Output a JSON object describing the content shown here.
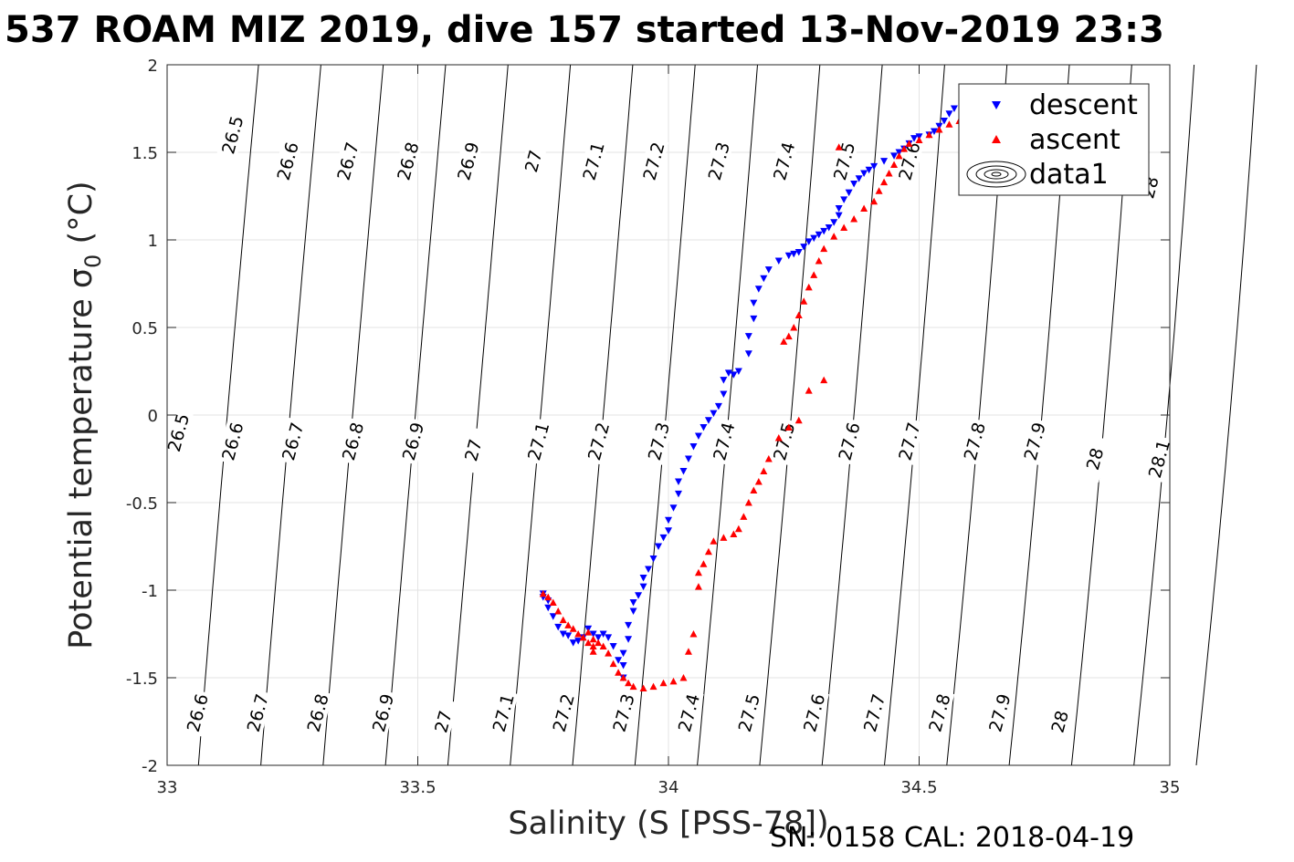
{
  "chart_data": {
    "type": "scatter",
    "title": "537 ROAM MIZ 2019, dive 157 started 13-Nov-2019 23:3",
    "xlabel": "Salinity (S [PSS-78])",
    "ylabel_main": "Potential temperature ",
    "ylabel_sigma": "σ",
    "ylabel_sub": "0",
    "ylabel_unit": " (°C)",
    "footer": "SN: 0158  CAL: 2018-04-19",
    "xlim": [
      33,
      35
    ],
    "ylim": [
      -2,
      2
    ],
    "xticks": [
      33,
      33.5,
      34,
      34.5,
      35
    ],
    "xtick_labels": [
      "33",
      "33.5",
      "34",
      "34.5",
      "35"
    ],
    "yticks": [
      -2,
      -1.5,
      -1,
      -0.5,
      0,
      0.5,
      1,
      1.5,
      2
    ],
    "ytick_labels": [
      "-2",
      "-1.5",
      "-1",
      "-0.5",
      "0",
      "0.5",
      "1",
      "1.5",
      "2"
    ],
    "grid": true,
    "legend_position": "top-right",
    "legend": [
      {
        "label": "descent",
        "marker": "triangle-down",
        "color": "#0000ff"
      },
      {
        "label": "ascent",
        "marker": "triangle-up",
        "color": "#ff0000"
      },
      {
        "label": "data1",
        "marker": "contour",
        "color": "#000000"
      }
    ],
    "density_contours": {
      "levels": [
        26.5,
        26.6,
        26.7,
        26.8,
        26.9,
        27,
        27.1,
        27.2,
        27.3,
        27.4,
        27.5,
        27.6,
        27.7,
        27.8,
        27.9,
        28,
        28.1
      ],
      "labels_upper": [
        {
          "text": "26.5",
          "s": 33.13,
          "t": 1.6
        },
        {
          "text": "26.6",
          "s": 33.24,
          "t": 1.45
        },
        {
          "text": "26.7",
          "s": 33.36,
          "t": 1.45
        },
        {
          "text": "26.8",
          "s": 33.48,
          "t": 1.45
        },
        {
          "text": "26.9",
          "s": 33.6,
          "t": 1.45
        },
        {
          "text": "27",
          "s": 33.73,
          "t": 1.45
        },
        {
          "text": "27.1",
          "s": 33.85,
          "t": 1.45
        },
        {
          "text": "27.2",
          "s": 33.97,
          "t": 1.45
        },
        {
          "text": "27.3",
          "s": 34.1,
          "t": 1.45
        },
        {
          "text": "27.4",
          "s": 34.23,
          "t": 1.45
        },
        {
          "text": "27.5",
          "s": 34.35,
          "t": 1.45
        },
        {
          "text": "27.6",
          "s": 34.48,
          "t": 1.45
        },
        {
          "text": "28",
          "s": 34.96,
          "t": 1.3
        }
      ],
      "labels_middle": [
        {
          "text": "26.5",
          "s": 33.02,
          "t": -0.1
        },
        {
          "text": "26.6",
          "s": 33.13,
          "t": -0.15
        },
        {
          "text": "26.7",
          "s": 33.25,
          "t": -0.15
        },
        {
          "text": "26.8",
          "s": 33.37,
          "t": -0.15
        },
        {
          "text": "26.9",
          "s": 33.49,
          "t": -0.15
        },
        {
          "text": "27",
          "s": 33.61,
          "t": -0.2
        },
        {
          "text": "27.1",
          "s": 33.74,
          "t": -0.15
        },
        {
          "text": "27.2",
          "s": 33.86,
          "t": -0.15
        },
        {
          "text": "27.3",
          "s": 33.98,
          "t": -0.15
        },
        {
          "text": "27.4",
          "s": 34.11,
          "t": -0.15
        },
        {
          "text": "27.5",
          "s": 34.23,
          "t": -0.15
        },
        {
          "text": "27.6",
          "s": 34.36,
          "t": -0.15
        },
        {
          "text": "27.7",
          "s": 34.48,
          "t": -0.15
        },
        {
          "text": "27.8",
          "s": 34.61,
          "t": -0.15
        },
        {
          "text": "27.9",
          "s": 34.73,
          "t": -0.15
        },
        {
          "text": "28",
          "s": 34.85,
          "t": -0.25
        },
        {
          "text": "28.1",
          "s": 34.98,
          "t": -0.25
        }
      ],
      "labels_lower": [
        {
          "text": "26.6",
          "s": 33.06,
          "t": -1.7
        },
        {
          "text": "26.7",
          "s": 33.18,
          "t": -1.7
        },
        {
          "text": "26.8",
          "s": 33.3,
          "t": -1.7
        },
        {
          "text": "26.9",
          "s": 33.43,
          "t": -1.7
        },
        {
          "text": "27",
          "s": 33.55,
          "t": -1.75
        },
        {
          "text": "27.1",
          "s": 33.67,
          "t": -1.7
        },
        {
          "text": "27.2",
          "s": 33.79,
          "t": -1.7
        },
        {
          "text": "27.3",
          "s": 33.91,
          "t": -1.7
        },
        {
          "text": "27.4",
          "s": 34.04,
          "t": -1.7
        },
        {
          "text": "27.5",
          "s": 34.16,
          "t": -1.7
        },
        {
          "text": "27.6",
          "s": 34.29,
          "t": -1.7
        },
        {
          "text": "27.7",
          "s": 34.41,
          "t": -1.7
        },
        {
          "text": "27.8",
          "s": 34.54,
          "t": -1.7
        },
        {
          "text": "27.9",
          "s": 34.66,
          "t": -1.7
        },
        {
          "text": "28",
          "s": 34.78,
          "t": -1.75
        }
      ]
    },
    "series": [
      {
        "name": "descent",
        "marker": "triangle-down",
        "color": "#0000ff",
        "points": [
          [
            34.57,
            1.75
          ],
          [
            34.56,
            1.72
          ],
          [
            34.55,
            1.68
          ],
          [
            34.54,
            1.65
          ],
          [
            34.53,
            1.62
          ],
          [
            34.52,
            1.6
          ],
          [
            34.5,
            1.59
          ],
          [
            34.49,
            1.58
          ],
          [
            34.48,
            1.55
          ],
          [
            34.47,
            1.52
          ],
          [
            34.46,
            1.5
          ],
          [
            34.45,
            1.48
          ],
          [
            34.43,
            1.45
          ],
          [
            34.41,
            1.42
          ],
          [
            34.4,
            1.4
          ],
          [
            34.39,
            1.38
          ],
          [
            34.38,
            1.35
          ],
          [
            34.37,
            1.32
          ],
          [
            34.36,
            1.27
          ],
          [
            34.35,
            1.23
          ],
          [
            34.34,
            1.18
          ],
          [
            34.34,
            1.14
          ],
          [
            34.33,
            1.1
          ],
          [
            34.32,
            1.07
          ],
          [
            34.31,
            1.05
          ],
          [
            34.3,
            1.03
          ],
          [
            34.29,
            1.01
          ],
          [
            34.28,
            0.99
          ],
          [
            34.27,
            0.96
          ],
          [
            34.26,
            0.93
          ],
          [
            34.25,
            0.92
          ],
          [
            34.24,
            0.91
          ],
          [
            34.22,
            0.88
          ],
          [
            34.2,
            0.83
          ],
          [
            34.19,
            0.78
          ],
          [
            34.18,
            0.72
          ],
          [
            34.17,
            0.64
          ],
          [
            34.17,
            0.55
          ],
          [
            34.16,
            0.45
          ],
          [
            34.16,
            0.35
          ],
          [
            34.14,
            0.25
          ],
          [
            34.13,
            0.23
          ],
          [
            34.12,
            0.24
          ],
          [
            34.11,
            0.2
          ],
          [
            34.11,
            0.12
          ],
          [
            34.1,
            0.05
          ],
          [
            34.09,
            0.01
          ],
          [
            34.08,
            -0.03
          ],
          [
            34.07,
            -0.07
          ],
          [
            34.06,
            -0.12
          ],
          [
            34.05,
            -0.18
          ],
          [
            34.04,
            -0.25
          ],
          [
            34.03,
            -0.32
          ],
          [
            34.02,
            -0.38
          ],
          [
            34.02,
            -0.45
          ],
          [
            34.01,
            -0.53
          ],
          [
            34.0,
            -0.6
          ],
          [
            34.0,
            -0.66
          ],
          [
            33.99,
            -0.7
          ],
          [
            33.98,
            -0.75
          ],
          [
            33.97,
            -0.82
          ],
          [
            33.96,
            -0.88
          ],
          [
            33.95,
            -0.93
          ],
          [
            33.95,
            -0.98
          ],
          [
            33.94,
            -1.03
          ],
          [
            33.93,
            -1.07
          ],
          [
            33.93,
            -1.12
          ],
          [
            33.92,
            -1.2
          ],
          [
            33.92,
            -1.28
          ],
          [
            33.91,
            -1.36
          ],
          [
            33.91,
            -1.43
          ],
          [
            33.91,
            -1.5
          ],
          [
            33.9,
            -1.4
          ],
          [
            33.89,
            -1.32
          ],
          [
            33.88,
            -1.27
          ],
          [
            33.87,
            -1.25
          ],
          [
            33.86,
            -1.27
          ],
          [
            33.85,
            -1.25
          ],
          [
            33.84,
            -1.22
          ],
          [
            33.83,
            -1.27
          ],
          [
            33.82,
            -1.29
          ],
          [
            33.81,
            -1.3
          ],
          [
            33.8,
            -1.26
          ],
          [
            33.79,
            -1.25
          ],
          [
            33.78,
            -1.21
          ],
          [
            33.77,
            -1.15
          ],
          [
            33.76,
            -1.1
          ],
          [
            33.76,
            -1.06
          ],
          [
            33.75,
            -1.04
          ],
          [
            33.75,
            -1.02
          ]
        ]
      },
      {
        "name": "ascent",
        "marker": "triangle-up",
        "color": "#ff0000",
        "points": [
          [
            34.58,
            1.68
          ],
          [
            34.56,
            1.66
          ],
          [
            34.54,
            1.63
          ],
          [
            34.52,
            1.6
          ],
          [
            34.5,
            1.57
          ],
          [
            34.48,
            1.55
          ],
          [
            34.47,
            1.52
          ],
          [
            34.46,
            1.48
          ],
          [
            34.45,
            1.43
          ],
          [
            34.44,
            1.38
          ],
          [
            34.43,
            1.33
          ],
          [
            34.42,
            1.28
          ],
          [
            34.41,
            1.22
          ],
          [
            34.39,
            1.18
          ],
          [
            34.37,
            1.12
          ],
          [
            34.35,
            1.07
          ],
          [
            34.33,
            1.02
          ],
          [
            34.31,
            0.95
          ],
          [
            34.3,
            0.88
          ],
          [
            34.29,
            0.8
          ],
          [
            34.28,
            0.73
          ],
          [
            34.27,
            0.65
          ],
          [
            34.26,
            0.57
          ],
          [
            34.25,
            0.5
          ],
          [
            34.24,
            0.45
          ],
          [
            34.23,
            0.42
          ],
          [
            34.34,
            1.53
          ],
          [
            34.31,
            0.2
          ],
          [
            34.28,
            0.14
          ],
          [
            34.26,
            -0.03
          ],
          [
            34.24,
            -0.07
          ],
          [
            34.22,
            -0.13
          ],
          [
            34.2,
            -0.25
          ],
          [
            34.19,
            -0.32
          ],
          [
            34.18,
            -0.38
          ],
          [
            34.17,
            -0.43
          ],
          [
            34.16,
            -0.5
          ],
          [
            34.15,
            -0.58
          ],
          [
            34.14,
            -0.65
          ],
          [
            34.13,
            -0.68
          ],
          [
            34.11,
            -0.7
          ],
          [
            34.09,
            -0.72
          ],
          [
            34.08,
            -0.78
          ],
          [
            34.07,
            -0.85
          ],
          [
            34.06,
            -0.9
          ],
          [
            34.06,
            -0.98
          ],
          [
            34.05,
            -1.25
          ],
          [
            34.04,
            -1.35
          ],
          [
            34.03,
            -1.5
          ],
          [
            34.01,
            -1.52
          ],
          [
            33.99,
            -1.53
          ],
          [
            33.97,
            -1.55
          ],
          [
            33.95,
            -1.56
          ],
          [
            33.93,
            -1.55
          ],
          [
            33.92,
            -1.53
          ],
          [
            33.91,
            -1.5
          ],
          [
            33.9,
            -1.47
          ],
          [
            33.89,
            -1.42
          ],
          [
            33.88,
            -1.36
          ],
          [
            33.87,
            -1.32
          ],
          [
            33.86,
            -1.3
          ],
          [
            33.85,
            -1.32
          ],
          [
            33.84,
            -1.3
          ],
          [
            33.83,
            -1.27
          ],
          [
            33.82,
            -1.25
          ],
          [
            33.81,
            -1.22
          ],
          [
            33.8,
            -1.2
          ],
          [
            33.79,
            -1.17
          ],
          [
            33.78,
            -1.12
          ],
          [
            33.77,
            -1.07
          ],
          [
            33.76,
            -1.04
          ],
          [
            33.75,
            -1.02
          ],
          [
            33.84,
            -1.24
          ],
          [
            33.85,
            -1.28
          ],
          [
            33.85,
            -1.35
          ]
        ]
      }
    ]
  }
}
